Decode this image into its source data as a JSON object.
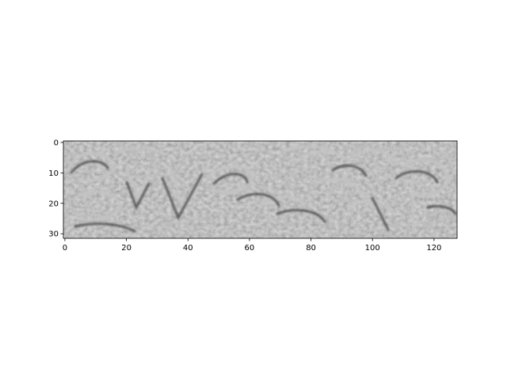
{
  "chart_data": {
    "type": "heatmap",
    "description_shown": "grayscale image displayed with axes",
    "image": {
      "columns": 128,
      "rows": 32,
      "colormap": "gray",
      "visible_text": "ivemp"
    },
    "x_axis": {
      "ticks": [
        0,
        20,
        40,
        60,
        80,
        100,
        120
      ],
      "tick_labels": [
        "0",
        "20",
        "40",
        "60",
        "80",
        "100",
        "120"
      ],
      "xlim": [
        -0.5,
        127.5
      ]
    },
    "y_axis": {
      "ticks": [
        0,
        10,
        20,
        30
      ],
      "tick_labels": [
        "0",
        "10",
        "20",
        "30"
      ],
      "ylim": [
        31.5,
        -0.5
      ],
      "inverted": true
    },
    "title": "",
    "xlabel": "",
    "ylabel": "",
    "grid": false,
    "legend": "none"
  },
  "colors": {
    "background": "#ffffff",
    "image_mid_gray": "#7f7f7f",
    "axis": "#000000"
  }
}
